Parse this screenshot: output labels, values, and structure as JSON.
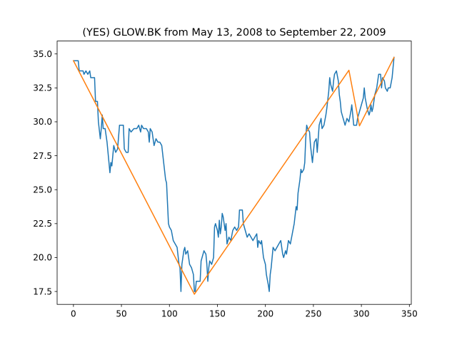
{
  "chart_data": {
    "type": "line",
    "title": "(YES) GLOW.BK from May 13, 2008 to September 22, 2009",
    "xlabel": "",
    "ylabel": "",
    "xlim": [
      -17,
      352
    ],
    "ylim": [
      16.55,
      35.95
    ],
    "x_ticks": [
      0,
      50,
      100,
      150,
      200,
      250,
      300,
      350
    ],
    "x_tick_labels": [
      "0",
      "50",
      "100",
      "150",
      "200",
      "250",
      "300",
      "350"
    ],
    "y_ticks": [
      17.5,
      20.0,
      22.5,
      25.0,
      27.5,
      30.0,
      32.5,
      35.0
    ],
    "y_tick_labels": [
      "17.5",
      "20.0",
      "22.5",
      "25.0",
      "27.5",
      "30.0",
      "32.5",
      "35.0"
    ],
    "grid": false,
    "legend": "none",
    "series": [
      {
        "color": "#1f77b4",
        "points": [
          [
            0,
            34.5
          ],
          [
            5,
            34.5
          ],
          [
            6,
            33.75
          ],
          [
            10,
            33.75
          ],
          [
            11,
            33.5
          ],
          [
            13,
            33.75
          ],
          [
            15,
            33.5
          ],
          [
            17,
            33.75
          ],
          [
            18,
            33.25
          ],
          [
            22,
            33.25
          ],
          [
            23,
            31.5
          ],
          [
            25,
            31.5
          ],
          [
            26,
            30.0
          ],
          [
            28,
            28.75
          ],
          [
            29,
            29.5
          ],
          [
            30,
            30.5
          ],
          [
            31,
            29.5
          ],
          [
            33,
            29.5
          ],
          [
            35,
            28.5
          ],
          [
            37,
            27.0
          ],
          [
            38,
            26.25
          ],
          [
            39,
            27.0
          ],
          [
            40,
            26.75
          ],
          [
            42,
            28.25
          ],
          [
            44,
            27.75
          ],
          [
            46,
            28.0
          ],
          [
            48,
            29.75
          ],
          [
            52,
            29.75
          ],
          [
            53,
            28.0
          ],
          [
            55,
            27.75
          ],
          [
            57,
            27.75
          ],
          [
            58,
            29.5
          ],
          [
            60,
            29.25
          ],
          [
            63,
            29.5
          ],
          [
            66,
            29.5
          ],
          [
            68,
            29.75
          ],
          [
            70,
            29.25
          ],
          [
            71,
            29.75
          ],
          [
            73,
            29.5
          ],
          [
            76,
            29.5
          ],
          [
            78,
            29.25
          ],
          [
            79,
            28.5
          ],
          [
            80,
            29.5
          ],
          [
            82,
            29.25
          ],
          [
            84,
            28.25
          ],
          [
            86,
            28.75
          ],
          [
            88,
            28.5
          ],
          [
            90,
            28.5
          ],
          [
            92,
            28.25
          ],
          [
            94,
            27.0
          ],
          [
            96,
            25.75
          ],
          [
            97,
            25.5
          ],
          [
            98,
            24.0
          ],
          [
            99,
            22.5
          ],
          [
            100,
            22.25
          ],
          [
            102,
            22.0
          ],
          [
            104,
            21.25
          ],
          [
            106,
            21.0
          ],
          [
            108,
            20.75
          ],
          [
            110,
            19.5
          ],
          [
            111,
            19.25
          ],
          [
            112,
            17.5
          ],
          [
            113,
            19.5
          ],
          [
            115,
            20.5
          ],
          [
            116,
            20.75
          ],
          [
            117,
            20.25
          ],
          [
            119,
            20.5
          ],
          [
            121,
            19.5
          ],
          [
            123,
            19.25
          ],
          [
            125,
            18.75
          ],
          [
            126,
            17.5
          ],
          [
            127,
            17.5
          ],
          [
            128,
            18.25
          ],
          [
            132,
            18.25
          ],
          [
            133,
            19.75
          ],
          [
            136,
            20.5
          ],
          [
            138,
            20.25
          ],
          [
            139,
            19.5
          ],
          [
            140,
            18.25
          ],
          [
            141,
            19.25
          ],
          [
            142,
            19.75
          ],
          [
            144,
            19.5
          ],
          [
            146,
            20.0
          ],
          [
            147,
            22.25
          ],
          [
            148,
            22.5
          ],
          [
            150,
            22.0
          ],
          [
            151,
            21.5
          ],
          [
            152,
            22.75
          ],
          [
            153,
            21.75
          ],
          [
            154,
            22.25
          ],
          [
            155,
            23.25
          ],
          [
            156,
            23.0
          ],
          [
            157,
            22.5
          ],
          [
            158,
            22.0
          ],
          [
            159,
            22.5
          ],
          [
            160,
            21.0
          ],
          [
            162,
            21.5
          ],
          [
            164,
            21.25
          ],
          [
            166,
            22.0
          ],
          [
            168,
            22.25
          ],
          [
            170,
            22.0
          ],
          [
            172,
            22.25
          ],
          [
            173,
            23.5
          ],
          [
            176,
            23.5
          ],
          [
            177,
            22.5
          ],
          [
            179,
            22.0
          ],
          [
            181,
            21.5
          ],
          [
            183,
            21.75
          ],
          [
            185,
            21.5
          ],
          [
            187,
            21.25
          ],
          [
            189,
            21.5
          ],
          [
            191,
            21.75
          ],
          [
            192,
            20.75
          ],
          [
            193,
            21.25
          ],
          [
            195,
            21.0
          ],
          [
            196,
            21.25
          ],
          [
            198,
            20.0
          ],
          [
            200,
            19.5
          ],
          [
            201,
            18.75
          ],
          [
            203,
            18.0
          ],
          [
            204,
            17.5
          ],
          [
            205,
            18.75
          ],
          [
            206,
            19.25
          ],
          [
            208,
            20.75
          ],
          [
            210,
            20.5
          ],
          [
            212,
            20.75
          ],
          [
            214,
            21.0
          ],
          [
            216,
            21.25
          ],
          [
            218,
            20.25
          ],
          [
            219,
            20.0
          ],
          [
            221,
            20.5
          ],
          [
            222,
            20.25
          ],
          [
            224,
            21.25
          ],
          [
            226,
            21.0
          ],
          [
            228,
            21.75
          ],
          [
            230,
            22.5
          ],
          [
            232,
            23.75
          ],
          [
            233,
            23.5
          ],
          [
            234,
            24.75
          ],
          [
            236,
            25.75
          ],
          [
            237,
            26.5
          ],
          [
            238,
            26.25
          ],
          [
            240,
            26.5
          ],
          [
            241,
            27.0
          ],
          [
            242,
            28.75
          ],
          [
            243,
            29.75
          ],
          [
            244,
            29.5
          ],
          [
            246,
            29.25
          ],
          [
            247,
            28.25
          ],
          [
            249,
            27.0
          ],
          [
            251,
            28.5
          ],
          [
            253,
            28.75
          ],
          [
            254,
            27.75
          ],
          [
            256,
            29.75
          ],
          [
            258,
            30.25
          ],
          [
            259,
            29.5
          ],
          [
            261,
            29.75
          ],
          [
            263,
            30.5
          ],
          [
            264,
            31.0
          ],
          [
            266,
            32.25
          ],
          [
            267,
            33.25
          ],
          [
            268,
            32.75
          ],
          [
            270,
            32.25
          ],
          [
            271,
            33.0
          ],
          [
            272,
            33.5
          ],
          [
            274,
            33.75
          ],
          [
            276,
            33.0
          ],
          [
            277,
            32.0
          ],
          [
            278,
            31.5
          ],
          [
            279,
            30.75
          ],
          [
            280,
            30.5
          ],
          [
            281,
            30.25
          ],
          [
            283,
            29.75
          ],
          [
            285,
            30.25
          ],
          [
            287,
            30.0
          ],
          [
            289,
            30.75
          ],
          [
            290,
            31.25
          ],
          [
            291,
            30.5
          ],
          [
            292,
            29.75
          ],
          [
            295,
            29.75
          ],
          [
            296,
            30.25
          ],
          [
            298,
            30.75
          ],
          [
            300,
            31.25
          ],
          [
            302,
            31.75
          ],
          [
            303,
            32.5
          ],
          [
            304,
            31.75
          ],
          [
            306,
            31.0
          ],
          [
            308,
            30.5
          ],
          [
            309,
            30.75
          ],
          [
            310,
            31.25
          ],
          [
            311,
            30.75
          ],
          [
            312,
            31.0
          ],
          [
            314,
            32.0
          ],
          [
            316,
            32.5
          ],
          [
            318,
            33.5
          ],
          [
            320,
            33.5
          ],
          [
            321,
            32.5
          ],
          [
            322,
            33.25
          ],
          [
            324,
            33.0
          ],
          [
            325,
            32.5
          ],
          [
            327,
            32.25
          ],
          [
            328,
            32.5
          ],
          [
            330,
            32.5
          ],
          [
            332,
            33.25
          ],
          [
            334,
            34.75
          ]
        ]
      },
      {
        "color": "#ff7f0e",
        "points": [
          [
            0,
            34.5
          ],
          [
            126,
            17.3
          ],
          [
            287,
            33.8
          ],
          [
            298,
            29.7
          ],
          [
            334,
            34.75
          ]
        ]
      }
    ]
  }
}
